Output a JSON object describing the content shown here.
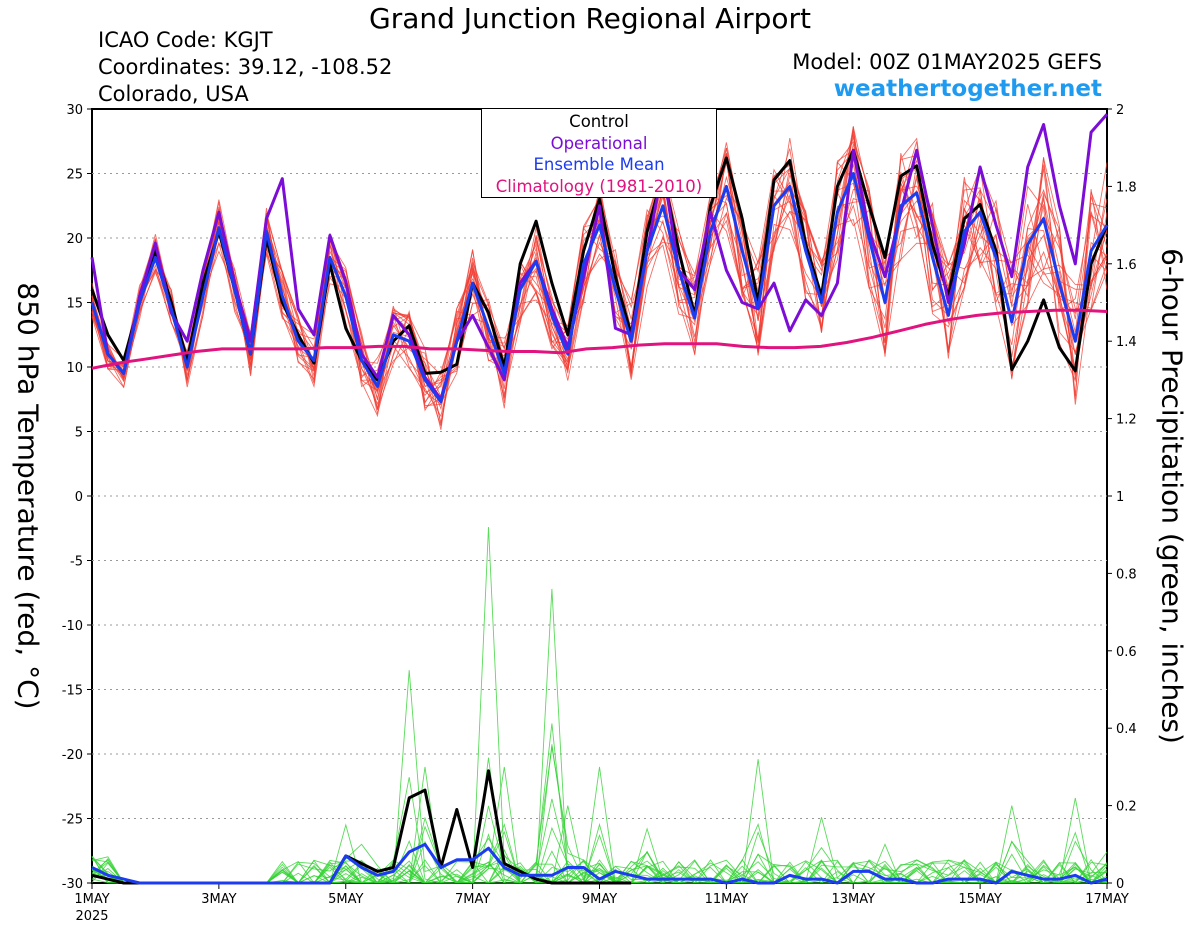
{
  "header": {
    "title": "Grand Junction Regional Airport",
    "icao": "ICAO Code: KGJT",
    "coords": "Coordinates: 39.12, -108.52",
    "region": "Colorado, USA",
    "model": "Model: 00Z 01MAY2025 GEFS",
    "site": "weathertogether.net"
  },
  "chart_data": {
    "type": "line",
    "title": "Grand Junction Regional Airport",
    "ylabel_left": "850 hPa Temperature (red, °C)",
    "ylabel_right": "6-hour Precipitation (green, inches)",
    "left_ylim": [
      -30,
      30
    ],
    "left_ticks": [
      "30",
      "25",
      "20",
      "15",
      "10",
      "5",
      "0",
      "-5",
      "-10",
      "-15",
      "-20",
      "-25",
      "-30"
    ],
    "right_ylim": [
      0,
      2
    ],
    "right_ticks": [
      "2",
      "1.8",
      "1.6",
      "1.4",
      "1.2",
      "1",
      "0.8",
      "0.6",
      "0.4",
      "0.2",
      "0"
    ],
    "x_ticks": [
      {
        "day": 0,
        "label": "1MAY",
        "sub": "2025"
      },
      {
        "day": 2,
        "label": "3MAY"
      },
      {
        "day": 4,
        "label": "5MAY"
      },
      {
        "day": 6,
        "label": "7MAY"
      },
      {
        "day": 8,
        "label": "9MAY"
      },
      {
        "day": 10,
        "label": "11MAY"
      },
      {
        "day": 12,
        "label": "13MAY"
      },
      {
        "day": 14,
        "label": "15MAY"
      },
      {
        "day": 16,
        "label": "17MAY"
      }
    ],
    "grid": "horizontal dotted",
    "legend": {
      "position": "top-center",
      "entries": [
        {
          "label": "Control",
          "color": "#000000"
        },
        {
          "label": "Operational",
          "color": "#7b0dd6"
        },
        {
          "label": "Ensemble Mean",
          "color": "#1c3cf0"
        },
        {
          "label": "Climatology (1981-2010)",
          "color": "#e0137f"
        }
      ]
    },
    "series": [
      {
        "name": "Control",
        "axis": "left",
        "color": "#000000",
        "values": [
          16.0,
          12.5,
          10.5,
          15.0,
          19.0,
          15.0,
          10.5,
          16.5,
          20.5,
          16.0,
          11.0,
          20.0,
          15.0,
          12.5,
          10.3,
          18.0,
          13.0,
          10.5,
          9.0,
          12.0,
          13.2,
          9.5,
          9.6,
          10.2,
          16.5,
          14.2,
          10.0,
          18.0,
          21.3,
          16.5,
          12.5,
          19.0,
          23.0,
          17.0,
          12.5,
          20.5,
          25.0,
          19.0,
          14.0,
          22.5,
          26.2,
          21.5,
          15.0,
          24.5,
          26.0,
          19.5,
          15.5,
          24.0,
          26.8,
          22.5,
          18.5,
          24.8,
          25.6,
          19.5,
          15.5,
          21.5,
          22.6,
          19.0,
          9.8,
          12.0,
          15.2,
          11.5,
          9.7,
          18.0,
          21.0
        ]
      },
      {
        "name": "Operational",
        "axis": "left",
        "color": "#7b0dd6",
        "values": [
          18.5,
          11.0,
          9.5,
          15.5,
          19.6,
          14.2,
          12.0,
          17.5,
          22.0,
          16.5,
          12.0,
          21.5,
          24.6,
          14.5,
          12.5,
          20.2,
          16.6,
          11.0,
          9.2,
          14.0,
          12.5,
          9.2,
          7.5,
          12.0,
          14.0,
          11.5,
          9.0,
          16.5,
          18.2,
          14.5,
          11.5,
          17.0,
          22.5,
          13.0,
          12.5,
          19.0,
          25.5,
          17.5,
          16.0,
          22.0,
          17.5,
          15.0,
          14.5,
          16.5,
          12.8,
          15.2,
          14.0,
          16.5,
          26.8,
          20.5,
          17.0,
          22.0,
          26.8,
          21.0,
          15.0,
          19.5,
          25.5,
          21.0,
          17.0,
          25.5,
          28.8,
          22.5,
          18.0,
          28.2,
          29.6
        ]
      },
      {
        "name": "Ensemble Mean",
        "axis": "left",
        "color": "#1c3cf0",
        "values": [
          15.0,
          11.0,
          9.5,
          15.0,
          18.5,
          14.5,
          10.0,
          15.5,
          20.8,
          16.0,
          11.0,
          20.5,
          15.5,
          12.0,
          10.5,
          18.5,
          15.5,
          10.5,
          8.5,
          12.5,
          12.0,
          9.0,
          7.3,
          12.0,
          16.5,
          13.0,
          9.5,
          16.0,
          18.2,
          14.0,
          11.0,
          18.0,
          21.0,
          16.0,
          12.0,
          19.0,
          22.5,
          17.5,
          13.8,
          20.5,
          24.0,
          19.0,
          14.5,
          22.5,
          24.0,
          19.0,
          15.0,
          22.0,
          25.0,
          20.0,
          15.0,
          22.5,
          23.5,
          18.5,
          14.0,
          20.5,
          22.0,
          18.5,
          13.5,
          19.5,
          21.5,
          16.5,
          12.0,
          19.0,
          21.0
        ]
      },
      {
        "name": "Climatology (1981-2010)",
        "axis": "left",
        "color": "#e0137f",
        "values": [
          9.9,
          10.3,
          10.6,
          10.9,
          11.2,
          11.4,
          11.4,
          11.4,
          11.4,
          11.5,
          11.5,
          11.6,
          11.6,
          11.4,
          11.4,
          11.3,
          11.2,
          11.2,
          11.1,
          11.4,
          11.5,
          11.7,
          11.8,
          11.8,
          11.8,
          11.6,
          11.5,
          11.5,
          11.6,
          11.9,
          12.3,
          12.8,
          13.3,
          13.7,
          14.0,
          14.2,
          14.3,
          14.4,
          14.4,
          14.3
        ]
      },
      {
        "name": "Control",
        "axis": "right",
        "color": "#000000",
        "values": [
          0.02,
          0.01,
          0.0,
          0.0,
          0.0,
          0.0,
          0.0,
          0.0,
          0.0,
          0.0,
          0.0,
          0.0,
          0.0,
          0.0,
          0.0,
          0.0,
          0.07,
          0.05,
          0.03,
          0.04,
          0.22,
          0.24,
          0.04,
          0.19,
          0.04,
          0.29,
          0.05,
          0.03,
          0.01,
          0.0,
          0.0,
          0.0,
          0.0,
          0.0,
          0.0
        ]
      },
      {
        "name": "Ensemble Mean",
        "axis": "right",
        "color": "#1c3cf0",
        "values": [
          0.04,
          0.02,
          0.01,
          0.0,
          0.0,
          0.0,
          0.0,
          0.0,
          0.0,
          0.0,
          0.0,
          0.0,
          0.0,
          0.0,
          0.0,
          0.0,
          0.07,
          0.04,
          0.02,
          0.03,
          0.08,
          0.1,
          0.04,
          0.06,
          0.06,
          0.09,
          0.04,
          0.02,
          0.02,
          0.02,
          0.04,
          0.04,
          0.01,
          0.03,
          0.02,
          0.01,
          0.01,
          0.01,
          0.01,
          0.01,
          0.0,
          0.01,
          0.0,
          0.0,
          0.02,
          0.01,
          0.01,
          0.0,
          0.03,
          0.03,
          0.01,
          0.01,
          0.0,
          0.0,
          0.01,
          0.01,
          0.01,
          0.0,
          0.03,
          0.02,
          0.01,
          0.01,
          0.02,
          0.0,
          0.01
        ]
      }
    ]
  }
}
